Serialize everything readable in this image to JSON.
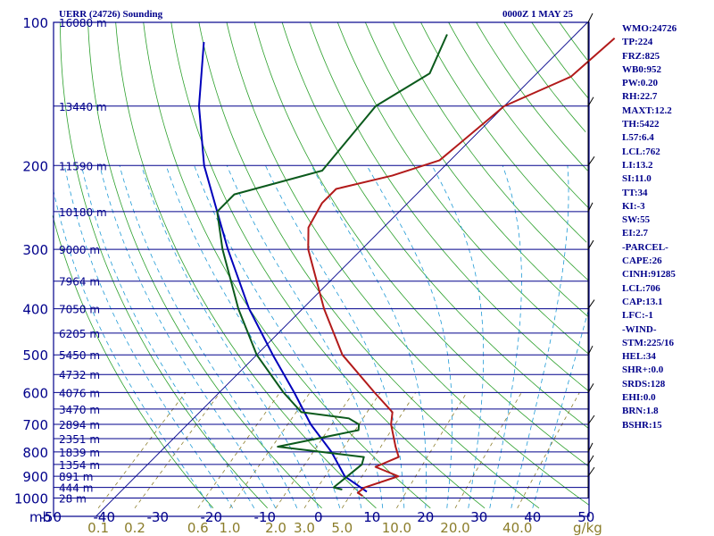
{
  "header": {
    "station": "UERR (24726) Sounding",
    "valid": "0000Z  1 MAY 25"
  },
  "indices": [
    "WMO:24726",
    "TP:224",
    "FRZ:825",
    "WB0:952",
    "PW:0.20",
    "RH:22.7",
    "MAXT:12.2",
    "TH:5422",
    "L57:6.4",
    "LCL:762",
    "LI:13.2",
    "SI:11.0",
    "TT:34",
    "KI:-3",
    "SW:55",
    "EI:2.7",
    "-PARCEL-",
    "CAPE:26",
    "CINH:91285",
    "LCL:706",
    "CAP:13.1",
    "LFC:-1",
    "-WIND-",
    "STM:225/16",
    "HEL:34",
    "SHR+:0.0",
    "SRDS:128",
    "EHI:0.0",
    "BRN:1.8",
    "BSHR:15"
  ],
  "colors": {
    "isobar": "#00008b",
    "isotherm": "#00008b",
    "dry_adiabat": "#2ca02c",
    "moist_adiabat": "#1f9ad6",
    "mixing_ratio": "#8b7d2a",
    "temperature": "#b21a1a",
    "dewpoint": "#0b5a1c",
    "parcel": "#0000bb",
    "wind_barb": "#000000"
  },
  "chart_data": {
    "type": "skew-t",
    "title": "UERR (24726) Sounding",
    "pressure_unit_label": "mb",
    "pressure_ticks": [
      100,
      200,
      300,
      400,
      500,
      600,
      700,
      800,
      900,
      1000
    ],
    "temperature_ticks": [
      -50,
      -40,
      -30,
      -20,
      -10,
      0,
      10,
      20,
      30,
      40,
      50
    ],
    "mixing_ratio_ticks": [
      "0.1",
      "0.2",
      "0.6",
      "1.0",
      "2.0",
      "3.0",
      "5.0",
      "10.0",
      "20.0",
      "40.0"
    ],
    "mixing_ratio_unit": "g/kg",
    "height_levels": [
      {
        "p": 100,
        "label": "16080 m"
      },
      {
        "p": 150,
        "label": "13440 m"
      },
      {
        "p": 200,
        "label": "11590 m"
      },
      {
        "p": 250,
        "label": "10180 m"
      },
      {
        "p": 300,
        "label": "9000 m"
      },
      {
        "p": 350,
        "label": "7964 m"
      },
      {
        "p": 400,
        "label": "7050 m"
      },
      {
        "p": 450,
        "label": "6205 m"
      },
      {
        "p": 500,
        "label": "5450 m"
      },
      {
        "p": 550,
        "label": "4732 m"
      },
      {
        "p": 600,
        "label": "4076 m"
      },
      {
        "p": 650,
        "label": "3470 m"
      },
      {
        "p": 700,
        "label": "2894 m"
      },
      {
        "p": 750,
        "label": "2351 m"
      },
      {
        "p": 800,
        "label": "1839 m"
      },
      {
        "p": 850,
        "label": "1354 m"
      },
      {
        "p": 900,
        "label": "891 m"
      },
      {
        "p": 950,
        "label": "444 m"
      },
      {
        "p": 1000,
        "label": "28 m"
      }
    ],
    "temperature_profile": [
      {
        "p": 990,
        "t": 6.0
      },
      {
        "p": 975,
        "t": 4.5
      },
      {
        "p": 950,
        "t": 4.8
      },
      {
        "p": 900,
        "t": 9.0
      },
      {
        "p": 860,
        "t": 3.0
      },
      {
        "p": 820,
        "t": 5.5
      },
      {
        "p": 780,
        "t": 3.0
      },
      {
        "p": 700,
        "t": -2.0
      },
      {
        "p": 660,
        "t": -4.0
      },
      {
        "p": 600,
        "t": -11.0
      },
      {
        "p": 500,
        "t": -24.0
      },
      {
        "p": 400,
        "t": -36.0
      },
      {
        "p": 300,
        "t": -50.0
      },
      {
        "p": 270,
        "t": -54.0
      },
      {
        "p": 240,
        "t": -56.0
      },
      {
        "p": 224,
        "t": -56.0
      },
      {
        "p": 210,
        "t": -48.0
      },
      {
        "p": 195,
        "t": -42.0
      },
      {
        "p": 150,
        "t": -40.0
      },
      {
        "p": 130,
        "t": -33.0
      },
      {
        "p": 108,
        "t": -32.0
      }
    ],
    "dewpoint_profile": [
      {
        "p": 960,
        "t": 1.0
      },
      {
        "p": 950,
        "t": -1.0
      },
      {
        "p": 850,
        "t": 0.0
      },
      {
        "p": 820,
        "t": -1.0
      },
      {
        "p": 780,
        "t": -19.0
      },
      {
        "p": 720,
        "t": -7.0
      },
      {
        "p": 700,
        "t": -8.0
      },
      {
        "p": 680,
        "t": -11.0
      },
      {
        "p": 660,
        "t": -21.0
      },
      {
        "p": 600,
        "t": -28.0
      },
      {
        "p": 500,
        "t": -40.0
      },
      {
        "p": 400,
        "t": -52.0
      },
      {
        "p": 300,
        "t": -66.0
      },
      {
        "p": 250,
        "t": -74.0
      },
      {
        "p": 230,
        "t": -74.0
      },
      {
        "p": 205,
        "t": -62.0
      },
      {
        "p": 150,
        "t": -64.0
      },
      {
        "p": 128,
        "t": -60.0
      },
      {
        "p": 106,
        "t": -64.0
      }
    ],
    "parcel_profile": [
      {
        "p": 970,
        "t": 6.0
      },
      {
        "p": 900,
        "t": -1.0
      },
      {
        "p": 800,
        "t": -8.0
      },
      {
        "p": 700,
        "t": -17.0
      },
      {
        "p": 600,
        "t": -26.0
      },
      {
        "p": 500,
        "t": -37.0
      },
      {
        "p": 400,
        "t": -50.0
      },
      {
        "p": 300,
        "t": -65.0
      },
      {
        "p": 200,
        "t": -85.0
      },
      {
        "p": 150,
        "t": -97.0
      },
      {
        "p": 110,
        "t": -108.0
      }
    ]
  }
}
